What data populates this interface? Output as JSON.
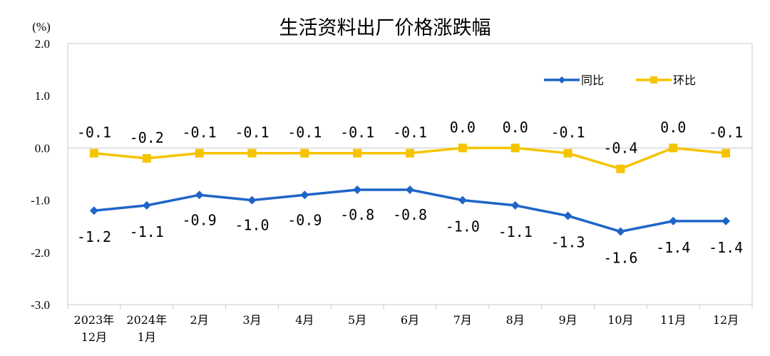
{
  "chart_data": {
    "type": "line",
    "title": "生活资料出厂价格涨跌幅",
    "unit_label": "(%)",
    "ylim": [
      -3.0,
      2.0
    ],
    "y_ticks": [
      "2.0",
      "1.0",
      "0.0",
      "-1.0",
      "-2.0",
      "-3.0"
    ],
    "y_tick_values": [
      2.0,
      1.0,
      0.0,
      -1.0,
      -2.0,
      -3.0
    ],
    "grid": false,
    "legend_position": "top-right",
    "categories": [
      [
        "2023年",
        "12月"
      ],
      [
        "2024年",
        "1月"
      ],
      [
        "2月"
      ],
      [
        "3月"
      ],
      [
        "4月"
      ],
      [
        "5月"
      ],
      [
        "6月"
      ],
      [
        "7月"
      ],
      [
        "8月"
      ],
      [
        "9月"
      ],
      [
        "10月"
      ],
      [
        "11月"
      ],
      [
        "12月"
      ]
    ],
    "series": [
      {
        "name": "同比",
        "color": "#1f65c8",
        "marker": "diamond",
        "values": [
          -1.2,
          -1.1,
          -0.9,
          -1.0,
          -0.9,
          -0.8,
          -0.8,
          -1.0,
          -1.1,
          -1.3,
          -1.6,
          -1.4,
          -1.4
        ],
        "labels": [
          "-1.2",
          "-1.1",
          "-0.9",
          "-1.0",
          "-0.9",
          "-0.8",
          "-0.8",
          "-1.0",
          "-1.1",
          "-1.3",
          "-1.6",
          "-1.4",
          "-1.4"
        ]
      },
      {
        "name": "环比",
        "color": "#f5c400",
        "marker": "square",
        "values": [
          -0.1,
          -0.2,
          -0.1,
          -0.1,
          -0.1,
          -0.1,
          -0.1,
          0.0,
          0.0,
          -0.1,
          -0.4,
          0.0,
          -0.1
        ],
        "labels": [
          "-0.1",
          "-0.2",
          "-0.1",
          "-0.1",
          "-0.1",
          "-0.1",
          "-0.1",
          "0.0",
          "0.0",
          "-0.1",
          "-0.4",
          "0.0",
          "-0.1"
        ]
      }
    ]
  }
}
